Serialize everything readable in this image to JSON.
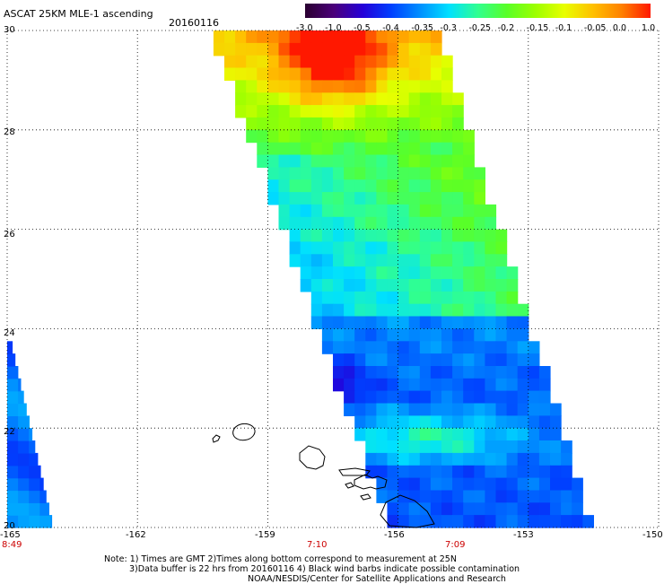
{
  "header": {
    "title": "ASCAT 25KM MLE-1 ascending",
    "date": "20160116"
  },
  "colorbar": {
    "tick_labels": [
      "-3.0",
      "-1.0",
      "-0.5",
      "-0.4",
      "-0.35",
      "-0.3",
      "-0.25",
      "-0.2",
      "-0.15",
      "-0.1",
      "-0.05",
      "0.0",
      "1.0"
    ],
    "colors": [
      "#2a0030",
      "#4b007a",
      "#2400d8",
      "#0040ff",
      "#0090ff",
      "#00e0ff",
      "#30ff90",
      "#58ff28",
      "#9cff00",
      "#e8ff00",
      "#ffc000",
      "#ff8000",
      "#ff1800"
    ]
  },
  "map": {
    "lat_labels": [
      "30",
      "28",
      "26",
      "24",
      "22",
      "20"
    ],
    "lon_labels": [
      "-165",
      "-162",
      "-159",
      "-156",
      "-153",
      "-150"
    ],
    "time_labels": [
      "8:49",
      "7:10",
      "7:09"
    ],
    "grid": "dotted",
    "regions": [
      "oahu",
      "maui",
      "big-island",
      "kauai",
      "molokai",
      "niihau"
    ]
  },
  "footer": {
    "line1": "Note: 1) Times are GMT 2)Times along bottom correspond to measurement at 25N",
    "line2": "3)Data buffer is 22 hrs from 20160116 4) Black wind barbs indicate possible contamination",
    "line3": "NOAA/NESDIS/Center for Satellite Applications and Research"
  }
}
